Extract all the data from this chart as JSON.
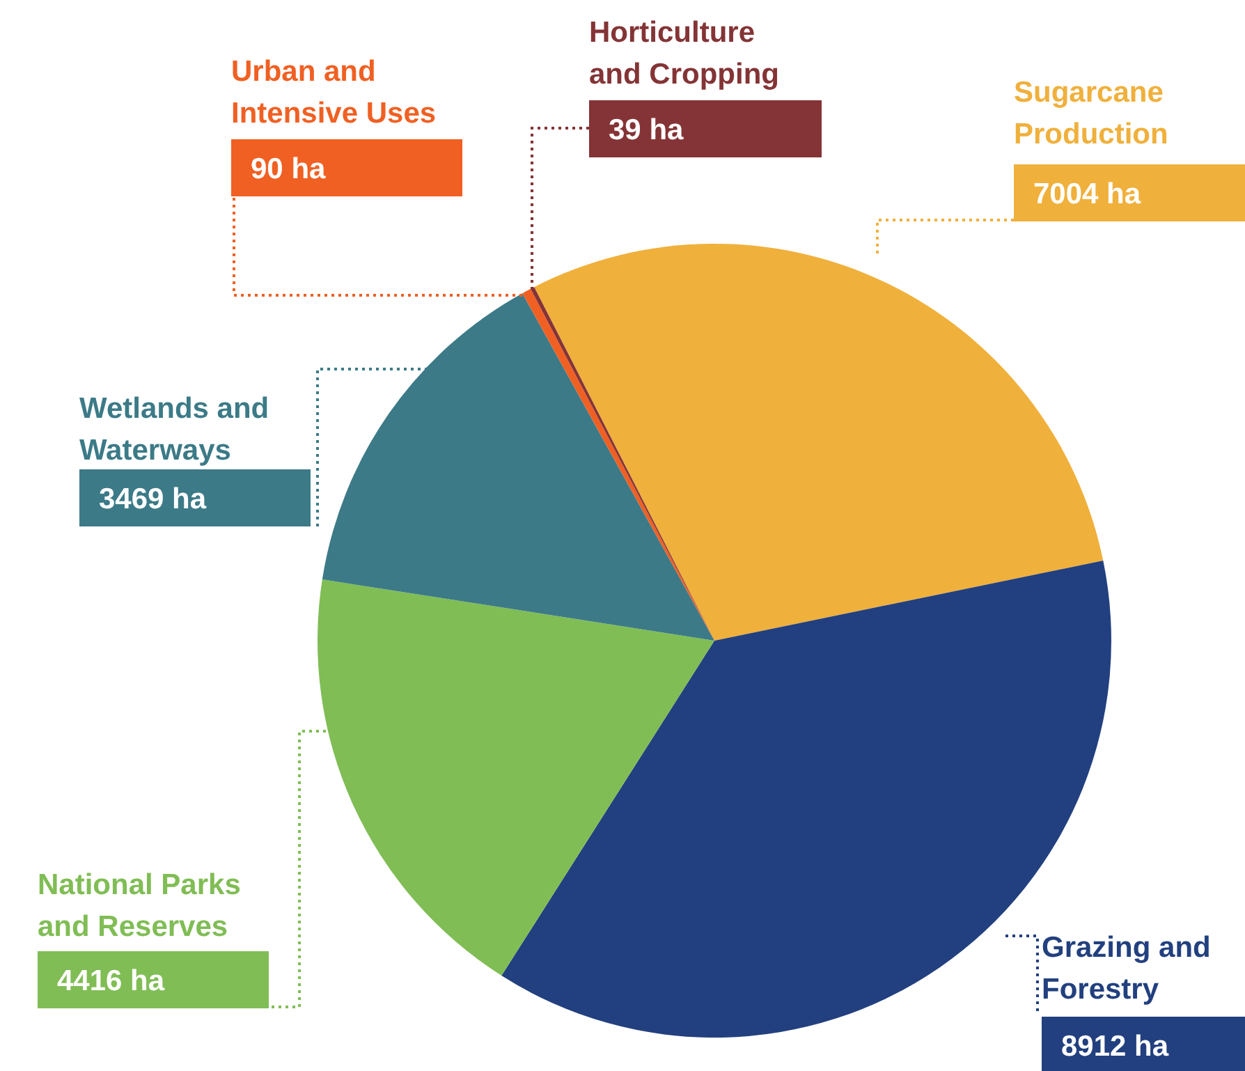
{
  "chart_data": {
    "type": "pie",
    "categories": [
      "Sugarcane Production",
      "Grazing and Forestry",
      "National Parks and Reserves",
      "Wetlands and Waterways",
      "Urban and Intensive Uses",
      "Horticulture and Cropping"
    ],
    "values": [
      7004,
      8912,
      4416,
      3469,
      90,
      39
    ],
    "value_labels": [
      "7004 ha",
      "8912 ha",
      "4416 ha",
      "3469 ha",
      "90 ha",
      "39 ha"
    ],
    "colors": [
      "#f0b03c",
      "#22407f",
      "#80bd55",
      "#3c7a87",
      "#f06023",
      "#843436"
    ]
  }
}
